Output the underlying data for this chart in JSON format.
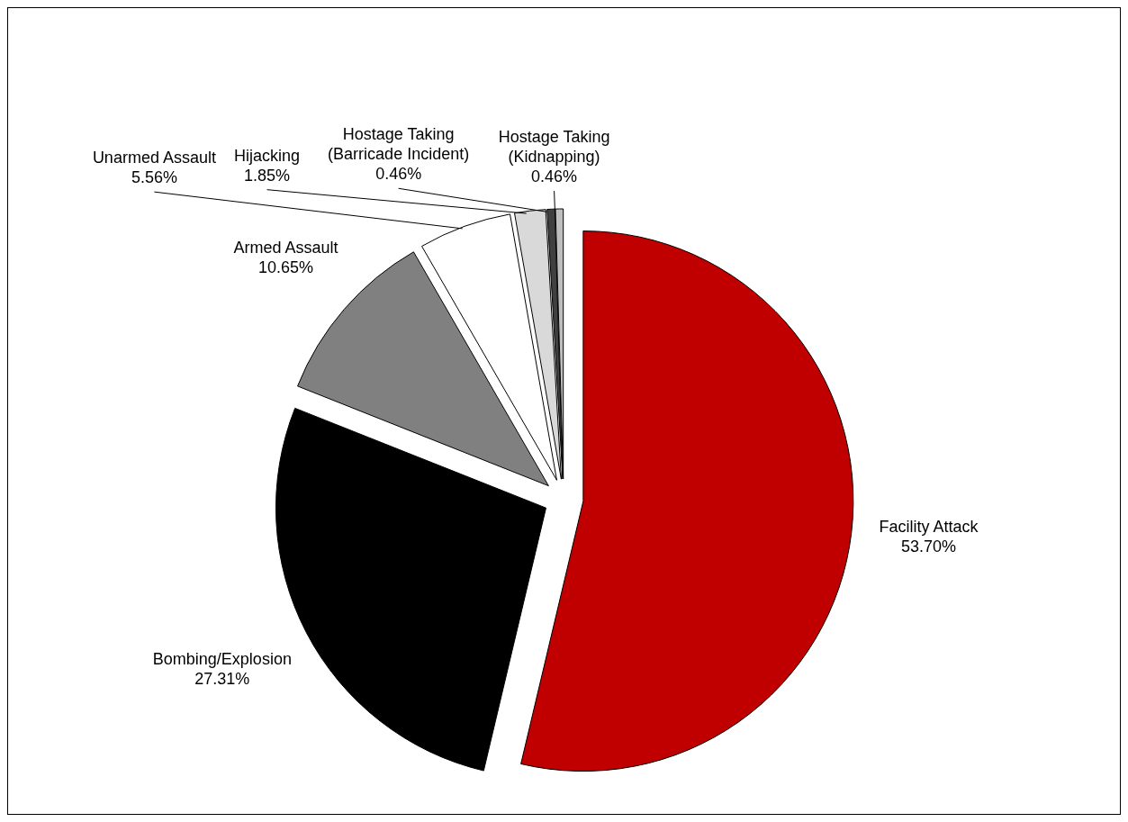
{
  "chart_data": {
    "type": "pie",
    "categories": [
      "Facility Attack",
      "Bombing/Explosion",
      "Armed Assault",
      "Unarmed Assault",
      "Hijacking",
      "Hostage Taking (Barricade Incident)",
      "Hostage Taking (Kidnapping)"
    ],
    "values": [
      53.7,
      27.31,
      10.65,
      5.56,
      1.85,
      0.46,
      0.46
    ],
    "value_labels": [
      "53.70%",
      "27.31%",
      "10.65%",
      "5.56%",
      "1.85%",
      "0.46%",
      "0.46%"
    ],
    "colors": [
      "#c00000",
      "#000000",
      "#808080",
      "#ffffff",
      "#d9d9d9",
      "#404040",
      "#bfbfbf"
    ],
    "legend": false
  }
}
